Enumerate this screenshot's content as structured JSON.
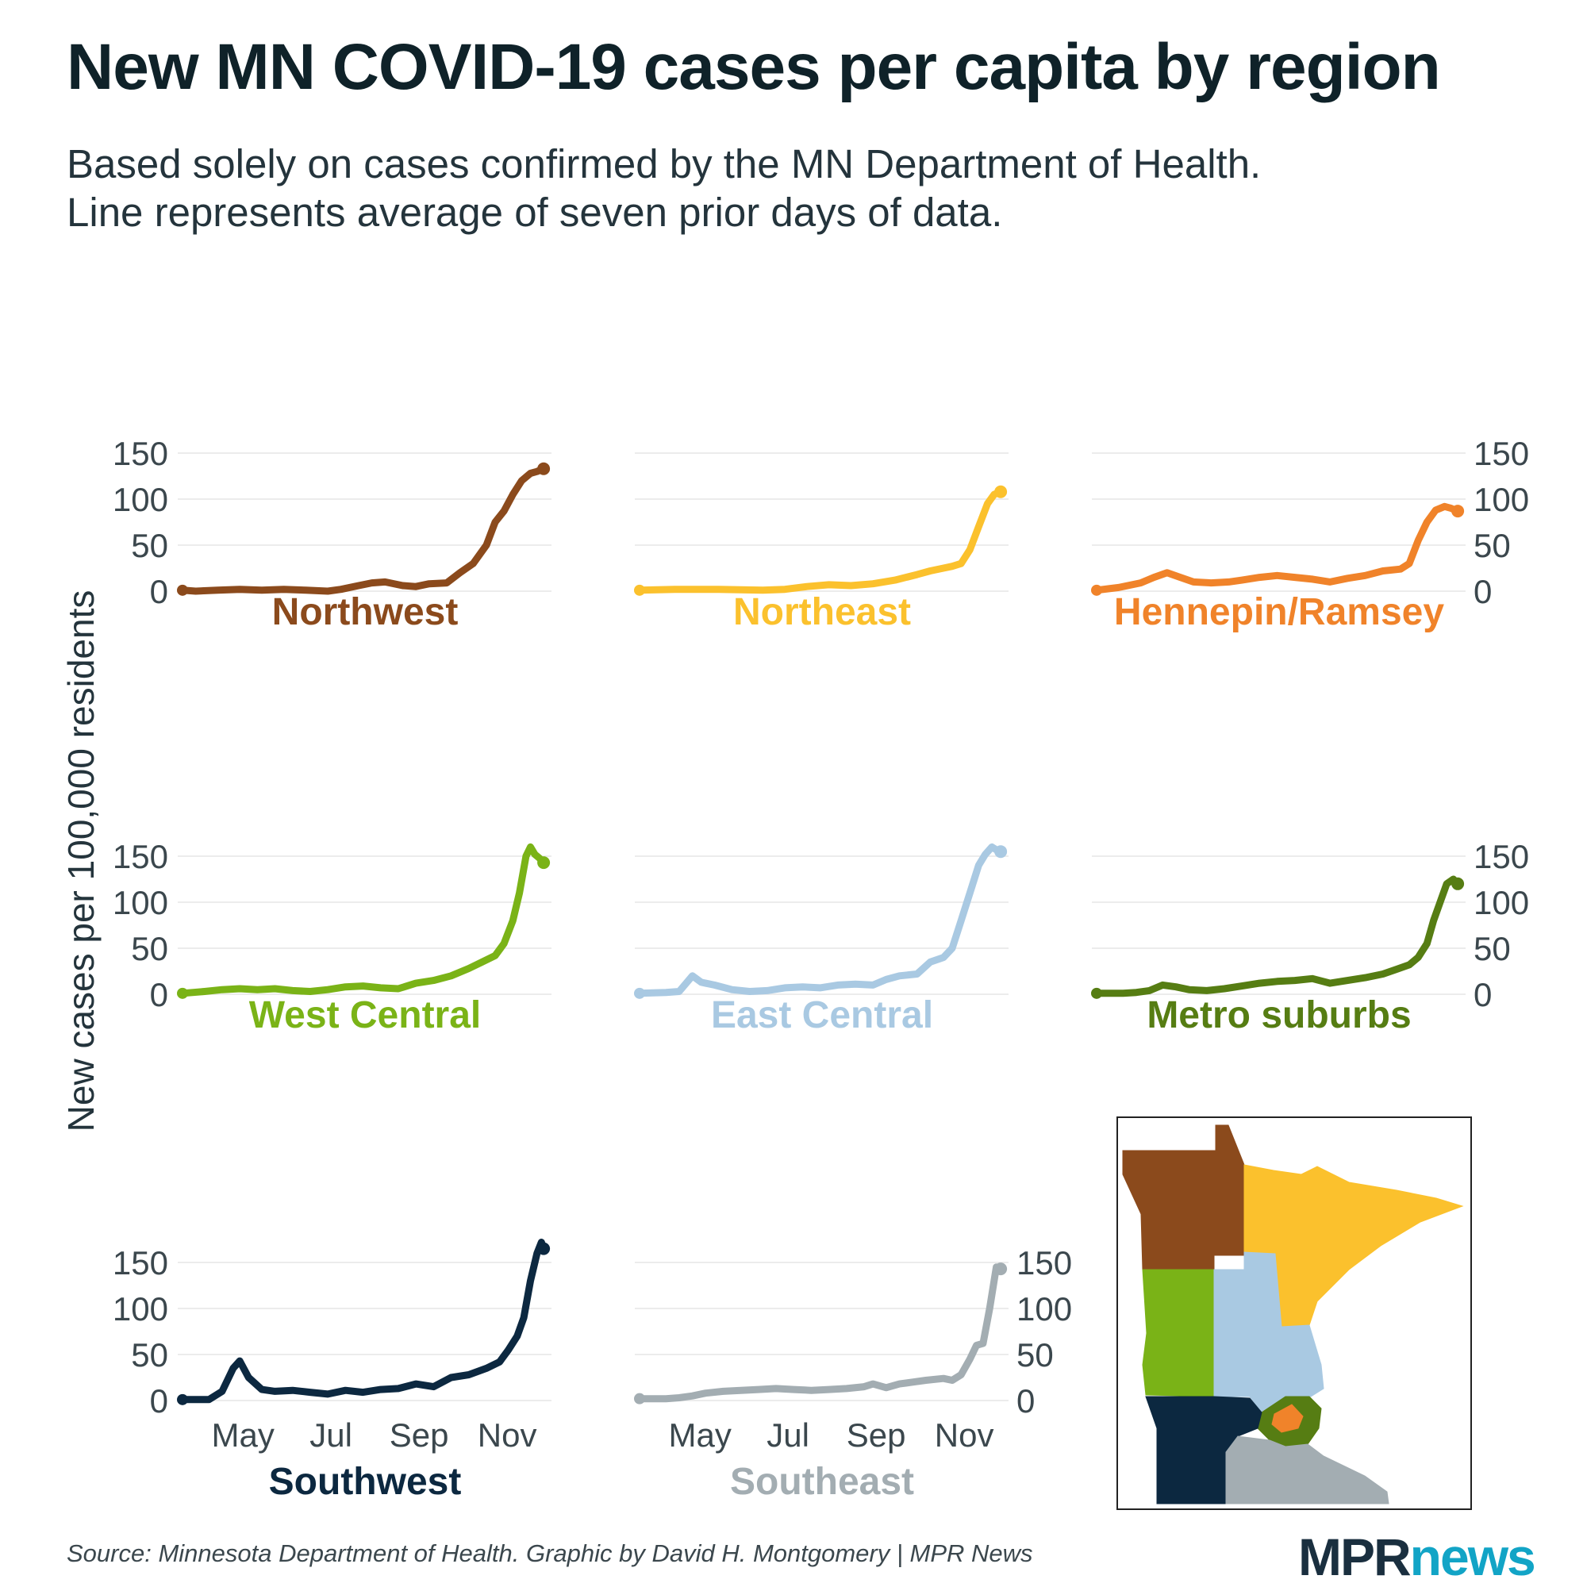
{
  "title": "New MN COVID-19 cases per capita by region",
  "subtitle": [
    "Based solely on cases confirmed by the MN Department of Health.",
    "Line represents average of seven prior days of data."
  ],
  "source": "Source: Minnesota Department of Health. Graphic by David H. Montgomery | MPR News",
  "logo": {
    "part1": "MPR",
    "part2": "news"
  },
  "colors": {
    "northwest": "#8b4a1c",
    "northeast": "#fbc12d",
    "hennepin_ramsey": "#f0832a",
    "west_central": "#7ab317",
    "east_central": "#a9c9e2",
    "metro_suburbs": "#567d13",
    "southwest": "#0c2840",
    "southeast": "#a3adb2"
  },
  "chart_data": {
    "type": "line",
    "ylabel": "New cases per 100,000 residents",
    "x_ticks": [
      "May",
      "Jul",
      "Sep",
      "Nov"
    ],
    "x_ticks_months": [
      5,
      7,
      9,
      11
    ],
    "ylim": [
      0,
      150
    ],
    "y_ticks": [
      "0",
      "50",
      "100",
      "150"
    ],
    "map_inset": true,
    "series": [
      {
        "name": "Northwest",
        "key": "northwest",
        "x": [
          3.7,
          4.0,
          4.5,
          5.0,
          5.5,
          6.0,
          6.5,
          7.0,
          7.3,
          7.7,
          8.0,
          8.3,
          8.7,
          9.0,
          9.3,
          9.7,
          10.0,
          10.3,
          10.6,
          10.8,
          11.0,
          11.2,
          11.4,
          11.6,
          11.75,
          11.9
        ],
        "y": [
          1,
          0,
          1,
          2,
          1,
          2,
          1,
          0,
          2,
          6,
          9,
          10,
          6,
          5,
          8,
          9,
          20,
          30,
          50,
          75,
          87,
          105,
          120,
          128,
          130,
          133
        ]
      },
      {
        "name": "Northeast",
        "key": "northeast",
        "x": [
          3.7,
          4.5,
          5.5,
          6.5,
          7.0,
          7.5,
          8.0,
          8.5,
          9.0,
          9.5,
          10.0,
          10.3,
          10.6,
          10.8,
          11.0,
          11.2,
          11.4,
          11.6,
          11.75,
          11.9
        ],
        "y": [
          1,
          2,
          2,
          1,
          2,
          5,
          7,
          6,
          8,
          12,
          18,
          22,
          25,
          27,
          30,
          45,
          70,
          95,
          105,
          108
        ]
      },
      {
        "name": "Hennepin/Ramsey",
        "key": "hennepin_ramsey",
        "x": [
          3.7,
          4.2,
          4.7,
          5.0,
          5.3,
          5.6,
          5.9,
          6.3,
          6.7,
          7.0,
          7.4,
          7.8,
          8.2,
          8.6,
          9.0,
          9.4,
          9.8,
          10.2,
          10.6,
          10.8,
          11.0,
          11.2,
          11.4,
          11.6,
          11.75,
          11.9
        ],
        "y": [
          1,
          4,
          9,
          15,
          20,
          15,
          10,
          9,
          10,
          12,
          15,
          17,
          15,
          13,
          10,
          14,
          17,
          22,
          24,
          30,
          55,
          75,
          88,
          92,
          90,
          87
        ]
      },
      {
        "name": "West Central",
        "key": "west_central",
        "x": [
          3.7,
          4.2,
          4.6,
          5.0,
          5.4,
          5.8,
          6.2,
          6.6,
          7.0,
          7.4,
          7.8,
          8.2,
          8.6,
          9.0,
          9.4,
          9.8,
          10.2,
          10.5,
          10.8,
          11.0,
          11.2,
          11.35,
          11.5,
          11.6,
          11.7,
          11.8,
          11.9
        ],
        "y": [
          1,
          3,
          5,
          6,
          5,
          6,
          4,
          3,
          5,
          8,
          9,
          7,
          6,
          12,
          15,
          20,
          28,
          35,
          42,
          55,
          80,
          110,
          150,
          160,
          152,
          148,
          143
        ]
      },
      {
        "name": "East Central",
        "key": "east_central",
        "x": [
          3.7,
          4.3,
          4.6,
          4.9,
          5.1,
          5.4,
          5.8,
          6.2,
          6.6,
          7.0,
          7.4,
          7.8,
          8.2,
          8.6,
          9.0,
          9.3,
          9.6,
          10.0,
          10.3,
          10.6,
          10.8,
          11.0,
          11.2,
          11.4,
          11.55,
          11.7,
          11.8,
          11.9
        ],
        "y": [
          1,
          2,
          3,
          20,
          13,
          10,
          5,
          3,
          4,
          7,
          8,
          7,
          10,
          11,
          10,
          16,
          20,
          22,
          35,
          40,
          50,
          80,
          110,
          140,
          152,
          160,
          157,
          155
        ]
      },
      {
        "name": "Metro suburbs",
        "key": "metro_suburbs",
        "x": [
          3.7,
          4.3,
          4.6,
          4.9,
          5.2,
          5.5,
          5.8,
          6.2,
          6.6,
          7.0,
          7.4,
          7.8,
          8.2,
          8.6,
          9.0,
          9.4,
          9.8,
          10.2,
          10.5,
          10.8,
          11.0,
          11.2,
          11.35,
          11.5,
          11.65,
          11.8,
          11.9
        ],
        "y": [
          1,
          1,
          2,
          4,
          10,
          8,
          5,
          4,
          6,
          9,
          12,
          14,
          15,
          17,
          12,
          15,
          18,
          22,
          27,
          32,
          40,
          55,
          80,
          100,
          120,
          125,
          120
        ]
      },
      {
        "name": "Southwest",
        "key": "southwest",
        "x": [
          3.7,
          4.3,
          4.6,
          4.85,
          5.0,
          5.2,
          5.5,
          5.8,
          6.2,
          6.6,
          7.0,
          7.4,
          7.8,
          8.2,
          8.6,
          9.0,
          9.4,
          9.8,
          10.2,
          10.6,
          10.9,
          11.1,
          11.3,
          11.45,
          11.6,
          11.75,
          11.85,
          11.9
        ],
        "y": [
          1,
          1,
          10,
          35,
          43,
          25,
          12,
          10,
          11,
          9,
          7,
          11,
          9,
          12,
          13,
          18,
          15,
          25,
          28,
          35,
          42,
          55,
          70,
          90,
          130,
          160,
          172,
          165
        ]
      },
      {
        "name": "Southeast",
        "key": "southeast",
        "x": [
          3.7,
          4.3,
          4.6,
          4.9,
          5.2,
          5.6,
          6.0,
          6.4,
          6.8,
          7.2,
          7.6,
          8.0,
          8.4,
          8.8,
          9.0,
          9.3,
          9.6,
          9.9,
          10.2,
          10.6,
          10.8,
          11.0,
          11.2,
          11.35,
          11.5,
          11.65,
          11.8,
          11.9
        ],
        "y": [
          2,
          2,
          3,
          5,
          8,
          10,
          11,
          12,
          13,
          12,
          11,
          12,
          13,
          15,
          18,
          14,
          18,
          20,
          22,
          24,
          22,
          28,
          45,
          60,
          62,
          100,
          145,
          143
        ]
      }
    ]
  }
}
